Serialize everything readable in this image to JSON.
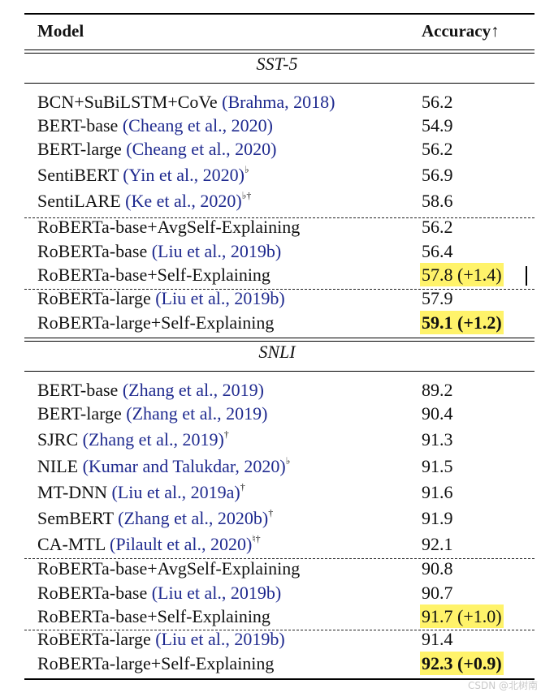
{
  "header": {
    "model": "Model",
    "accuracy": "Accuracy↑"
  },
  "sections": [
    {
      "title": "SST-5",
      "rows": [
        {
          "model": "BCN+SuBiLSTM+CoVe ",
          "cite": "(Brahma, 2018)",
          "sup": "",
          "acc": "56.2",
          "highlight": false,
          "bold": false
        },
        {
          "model": "BERT-base ",
          "cite": "(Cheang et al., 2020)",
          "sup": "",
          "acc": "54.9",
          "highlight": false,
          "bold": false
        },
        {
          "model": "BERT-large ",
          "cite": "(Cheang et al., 2020)",
          "sup": "",
          "acc": "56.2",
          "highlight": false,
          "bold": false
        },
        {
          "model": "SentiBERT ",
          "cite": "(Yin et al., 2020)",
          "sup": "♭",
          "acc": "56.9",
          "highlight": false,
          "bold": false
        },
        {
          "model": "SentiLARE ",
          "cite": "(Ke et al., 2020)",
          "sup": "♭†",
          "acc": "58.6",
          "highlight": false,
          "bold": false
        },
        {
          "model": "RoBERTa-base+AvgSelf-Explaining",
          "cite": "",
          "sup": "",
          "acc": "56.2",
          "highlight": false,
          "bold": false
        },
        {
          "model": "RoBERTa-base ",
          "cite": "(Liu et al., 2019b)",
          "sup": "",
          "acc": "56.4",
          "highlight": false,
          "bold": false
        },
        {
          "model": "RoBERTa-base+Self-Explaining",
          "cite": "",
          "sup": "",
          "acc": "57.8 (+1.4)",
          "highlight": true,
          "bold": false
        },
        {
          "model": "RoBERTa-large ",
          "cite": "(Liu et al., 2019b)",
          "sup": "",
          "acc": "57.9",
          "highlight": false,
          "bold": false
        },
        {
          "model": "RoBERTa-large+Self-Explaining",
          "cite": "",
          "sup": "",
          "acc": "59.1 (+1.2)",
          "highlight": true,
          "bold": true
        }
      ]
    },
    {
      "title": "SNLI",
      "rows": [
        {
          "model": "BERT-base ",
          "cite": "(Zhang et al., 2019)",
          "sup": "",
          "acc": "89.2",
          "highlight": false,
          "bold": false
        },
        {
          "model": "BERT-large ",
          "cite": "(Zhang et al., 2019)",
          "sup": "",
          "acc": "90.4",
          "highlight": false,
          "bold": false
        },
        {
          "model": "SJRC ",
          "cite": "(Zhang et al., 2019)",
          "sup": "†",
          "acc": "91.3",
          "highlight": false,
          "bold": false
        },
        {
          "model": "NILE ",
          "cite": "(Kumar and Talukdar, 2020)",
          "sup": "♭",
          "acc": "91.5",
          "highlight": false,
          "bold": false
        },
        {
          "model": "MT-DNN ",
          "cite": "(Liu et al., 2019a)",
          "sup": "†",
          "acc": "91.6",
          "highlight": false,
          "bold": false
        },
        {
          "model": "SemBERT ",
          "cite": "(Zhang et al., 2020b)",
          "sup": "†",
          "acc": "91.9",
          "highlight": false,
          "bold": false
        },
        {
          "model": "CA-MTL ",
          "cite": "(Pilault et al., 2020)",
          "sup": "♮†",
          "acc": "92.1",
          "highlight": false,
          "bold": false
        },
        {
          "model": "RoBERTa-base+AvgSelf-Explaining",
          "cite": "",
          "sup": "",
          "acc": "90.8",
          "highlight": false,
          "bold": false
        },
        {
          "model": "RoBERTa-base ",
          "cite": "(Liu et al., 2019b)",
          "sup": "",
          "acc": "90.7",
          "highlight": false,
          "bold": false
        },
        {
          "model": "RoBERTa-base+Self-Explaining",
          "cite": "",
          "sup": "",
          "acc": "91.7 (+1.0)",
          "highlight": true,
          "bold": false
        },
        {
          "model": "RoBERTa-large ",
          "cite": "(Liu et al., 2019b)",
          "sup": "",
          "acc": "91.4",
          "highlight": false,
          "bold": false
        },
        {
          "model": "RoBERTa-large+Self-Explaining",
          "cite": "",
          "sup": "",
          "acc": "92.3 (+0.9)",
          "highlight": true,
          "bold": true
        }
      ]
    }
  ],
  "watermark": "CSDN @北树南"
}
